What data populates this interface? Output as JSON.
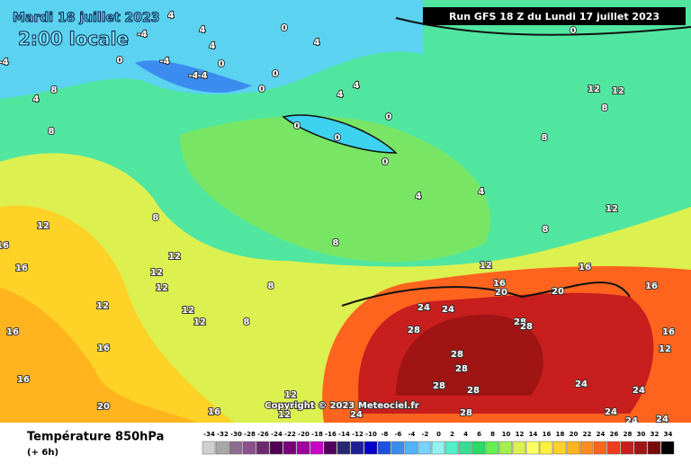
{
  "date": "Mardi 18 juillet 2023",
  "local_time": "2:00 locale",
  "run": "Run GFS 18 Z du Lundi 17 juillet 2023",
  "copyright": "Copyright © 2023 Meteociel.fr",
  "field": "Température 850hPa",
  "step": "(+ 6h)",
  "contour_labels": [
    -4,
    4,
    4,
    4,
    0,
    -4,
    -4,
    -4,
    0,
    0,
    0,
    4,
    0,
    0,
    4,
    4,
    0,
    0,
    0,
    0,
    4,
    4,
    8,
    8,
    8,
    8,
    8,
    8,
    12,
    12,
    12,
    12,
    12,
    12,
    12,
    12,
    16,
    16,
    16,
    16,
    16,
    16,
    16,
    20,
    20,
    20,
    24,
    24,
    28,
    28,
    28,
    28,
    28,
    28,
    28,
    28,
    24,
    24,
    24,
    24,
    24,
    24,
    16,
    12,
    16,
    16,
    12,
    12,
    12,
    8,
    4,
    -4,
    8,
    12,
    12,
    8
  ],
  "scale": {
    "ticks": [
      -34,
      -32,
      -30,
      -28,
      -26,
      -24,
      -22,
      -20,
      -18,
      -16,
      -14,
      -12,
      -10,
      -8,
      -6,
      -4,
      -2,
      0,
      2,
      4,
      6,
      8,
      10,
      12,
      14,
      16,
      18,
      20,
      22,
      24,
      26,
      28,
      30,
      32,
      34
    ],
    "colors": [
      "#d0d0d0",
      "#a8a8a8",
      "#8c6e8c",
      "#8c508c",
      "#6e2a6e",
      "#500050",
      "#780078",
      "#a000a0",
      "#c800c8",
      "#50005a",
      "#28286e",
      "#1e1e96",
      "#0000c8",
      "#1e50dc",
      "#3c8cf0",
      "#50b4ff",
      "#78d2ff",
      "#96f0f0",
      "#50f0c8",
      "#3cdc96",
      "#28dc64",
      "#64f050",
      "#a0f050",
      "#dcf050",
      "#ffff64",
      "#fff03c",
      "#ffd228",
      "#ffb41e",
      "#ff8c1e",
      "#ff641e",
      "#f03c1e",
      "#c81e1e",
      "#a01414",
      "#780a0a",
      "#000000"
    ]
  }
}
